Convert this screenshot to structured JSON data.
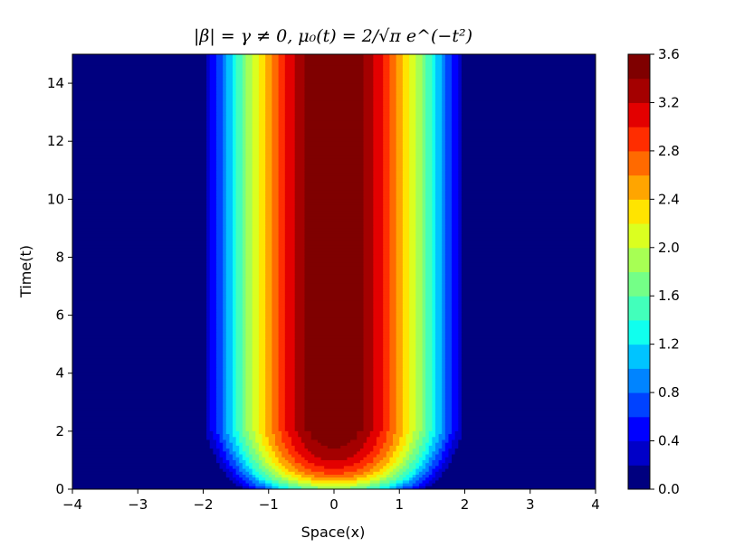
{
  "chart_data": {
    "type": "heatmap",
    "subtype": "filled-contour",
    "title": "|β| = γ ≠ 0,  μ₀(t) = 2/√π  e^(−t²)",
    "xlabel": "Space(x)",
    "ylabel": "Time(t)",
    "xlim": [
      -4,
      4
    ],
    "ylim": [
      0,
      15
    ],
    "xticks": [
      -4,
      -3,
      -2,
      -1,
      0,
      1,
      2,
      3,
      4
    ],
    "xtick_labels": [
      "−4",
      "−3",
      "−2",
      "−1",
      "0",
      "1",
      "2",
      "3",
      "4"
    ],
    "yticks": [
      0,
      2,
      4,
      6,
      8,
      10,
      12,
      14
    ],
    "ytick_labels": [
      "0",
      "2",
      "4",
      "6",
      "8",
      "10",
      "12",
      "14"
    ],
    "grid": false,
    "colorbar": {
      "location": "right",
      "levels": [
        0.0,
        0.2,
        0.4,
        0.6,
        0.8,
        1.0,
        1.2,
        1.4,
        1.6,
        1.8,
        2.0,
        2.2,
        2.4,
        2.6,
        2.8,
        3.0,
        3.2,
        3.4,
        3.6
      ],
      "tick_values": [
        0.0,
        0.4,
        0.8,
        1.2,
        1.6,
        2.0,
        2.4,
        2.8,
        3.2,
        3.6
      ],
      "tick_labels": [
        "0.0",
        "0.4",
        "0.8",
        "1.2",
        "1.6",
        "2.0",
        "2.4",
        "2.8",
        "3.2",
        "3.6"
      ],
      "colors": [
        "#00007f",
        "#0000c8",
        "#0000ff",
        "#0042ff",
        "#0084ff",
        "#00c4ff",
        "#10ffee",
        "#42ffbb",
        "#74ff87",
        "#a7ff54",
        "#dbff20",
        "#ffe400",
        "#ffa500",
        "#ff6a00",
        "#ff2d00",
        "#e30000",
        "#a40000",
        "#7f0000"
      ],
      "colormap": "jet"
    },
    "field": {
      "description_kind": "profile",
      "peak_value": 3.6,
      "support_x": [
        -2.1,
        2.1
      ],
      "core_halfwidth_x": 0.35,
      "steady_state_from_t": 2.0,
      "transient_t": [
        0,
        2
      ]
    }
  }
}
